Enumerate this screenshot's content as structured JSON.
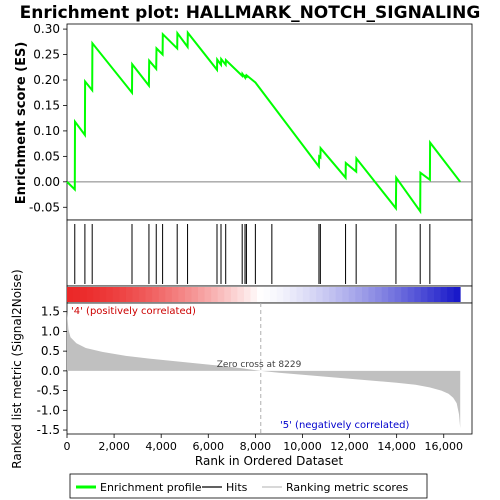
{
  "chart_data": {
    "type": "line",
    "title": "Enrichment plot: HALLMARK_NOTCH_SIGNALING",
    "es_panel": {
      "ylabel": "Enrichment score (ES)",
      "ylim": [
        -0.075,
        0.31
      ],
      "yticks": [
        "0.30",
        "0.25",
        "0.20",
        "0.15",
        "0.10",
        "0.05",
        "0.00",
        "-0.05"
      ],
      "ytick_values": [
        0.3,
        0.25,
        0.2,
        0.15,
        0.1,
        0.05,
        0.0,
        -0.05
      ],
      "series": [
        {
          "name": "Enrichment profile",
          "color": "#00ff00",
          "points": [
            [
              0,
              0.0
            ],
            [
              330,
              -0.015
            ],
            [
              340,
              0.118
            ],
            [
              760,
              0.092
            ],
            [
              770,
              0.197
            ],
            [
              1070,
              0.18
            ],
            [
              1080,
              0.272
            ],
            [
              2760,
              0.175
            ],
            [
              2770,
              0.231
            ],
            [
              3480,
              0.189
            ],
            [
              3490,
              0.238
            ],
            [
              3790,
              0.222
            ],
            [
              3800,
              0.262
            ],
            [
              4060,
              0.25
            ],
            [
              4070,
              0.29
            ],
            [
              4680,
              0.262
            ],
            [
              4690,
              0.292
            ],
            [
              5120,
              0.265
            ],
            [
              5130,
              0.293
            ],
            [
              6370,
              0.22
            ],
            [
              6380,
              0.24
            ],
            [
              6540,
              0.23
            ],
            [
              6550,
              0.241
            ],
            [
              6740,
              0.23
            ],
            [
              6750,
              0.239
            ],
            [
              7440,
              0.208
            ],
            [
              7450,
              0.212
            ],
            [
              7560,
              0.205
            ],
            [
              7570,
              0.21
            ],
            [
              7620,
              0.204
            ],
            [
              7630,
              0.209
            ],
            [
              8000,
              0.195
            ],
            [
              10700,
              0.03
            ],
            [
              10710,
              0.05
            ],
            [
              10760,
              0.048
            ],
            [
              10770,
              0.066
            ],
            [
              11830,
              0.008
            ],
            [
              11840,
              0.037
            ],
            [
              12280,
              0.02
            ],
            [
              12290,
              0.046
            ],
            [
              13970,
              -0.052
            ],
            [
              13980,
              0.008
            ],
            [
              15000,
              -0.058
            ],
            [
              15010,
              0.018
            ],
            [
              15410,
              0.004
            ],
            [
              15420,
              0.077
            ],
            [
              16700,
              0.0
            ]
          ]
        }
      ]
    },
    "hits_panel": {
      "legend_label": "Hits",
      "hit_ranks": [
        330,
        760,
        1070,
        2760,
        3480,
        3790,
        4060,
        4680,
        5120,
        6370,
        6540,
        6740,
        7440,
        7560,
        7620,
        8000,
        8700,
        10700,
        10760,
        11830,
        12280,
        13970,
        15000,
        15410
      ]
    },
    "ranked_panel": {
      "ylabel": "Ranked list metric (Signal2Noise)",
      "xlabel": "Rank in Ordered Dataset",
      "ylim": [
        -1.6,
        1.72
      ],
      "yticks": [
        "1.5",
        "1.0",
        "0.5",
        "0.0",
        "-0.5",
        "-1.0",
        "-1.5"
      ],
      "ytick_values": [
        1.5,
        1.0,
        0.5,
        0.0,
        -0.5,
        -1.0,
        -1.5
      ],
      "legend_label": "Ranking metric scores",
      "fill_color": "#c0c0c0",
      "profile": [
        [
          0,
          1.5
        ],
        [
          60,
          1.05
        ],
        [
          150,
          0.85
        ],
        [
          400,
          0.7
        ],
        [
          800,
          0.58
        ],
        [
          1500,
          0.48
        ],
        [
          2500,
          0.38
        ],
        [
          3500,
          0.31
        ],
        [
          4500,
          0.25
        ],
        [
          5500,
          0.19
        ],
        [
          6500,
          0.13
        ],
        [
          7500,
          0.06
        ],
        [
          8229,
          0.0
        ],
        [
          9000,
          -0.05
        ],
        [
          10000,
          -0.1
        ],
        [
          11000,
          -0.15
        ],
        [
          12000,
          -0.2
        ],
        [
          13000,
          -0.25
        ],
        [
          14000,
          -0.3
        ],
        [
          14800,
          -0.35
        ],
        [
          15400,
          -0.42
        ],
        [
          15900,
          -0.5
        ],
        [
          16200,
          -0.58
        ],
        [
          16400,
          -0.68
        ],
        [
          16550,
          -0.82
        ],
        [
          16650,
          -1.1
        ],
        [
          16700,
          -1.45
        ]
      ],
      "zero_cross_label": "Zero cross at 8229",
      "zero_cross": 8229,
      "positive_label": "'4' (positively correlated)",
      "negative_label": "'5' (negatively correlated)",
      "positive_color": "#cc0000",
      "negative_color": "#0000cc"
    },
    "xaxis": {
      "xlim": [
        0,
        17200
      ],
      "ticks": [
        "0",
        "2,000",
        "4,000",
        "6,000",
        "8,000",
        "10,000",
        "12,000",
        "14,000",
        "16,000"
      ],
      "tick_values": [
        0,
        2000,
        4000,
        6000,
        8000,
        10000,
        12000,
        14000,
        16000
      ],
      "n_genes": 16700
    },
    "legend": {
      "placement": "bottom",
      "items": [
        "Enrichment profile",
        "Hits",
        "Ranking metric scores"
      ],
      "colors": [
        "#00ff00",
        "#000000",
        "#c0c0c0"
      ]
    }
  }
}
